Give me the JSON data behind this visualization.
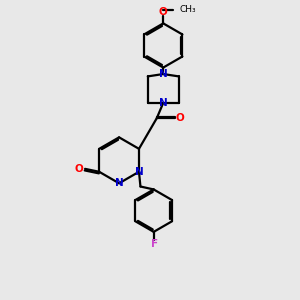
{
  "background_color": "#e8e8e8",
  "bond_color": "#000000",
  "N_color": "#0000cc",
  "O_color": "#ff0000",
  "F_color": "#cc44cc",
  "line_width": 1.6,
  "fig_size": [
    3.0,
    3.0
  ],
  "dpi": 100,
  "xlim": [
    0,
    10
  ],
  "ylim": [
    0,
    10
  ]
}
